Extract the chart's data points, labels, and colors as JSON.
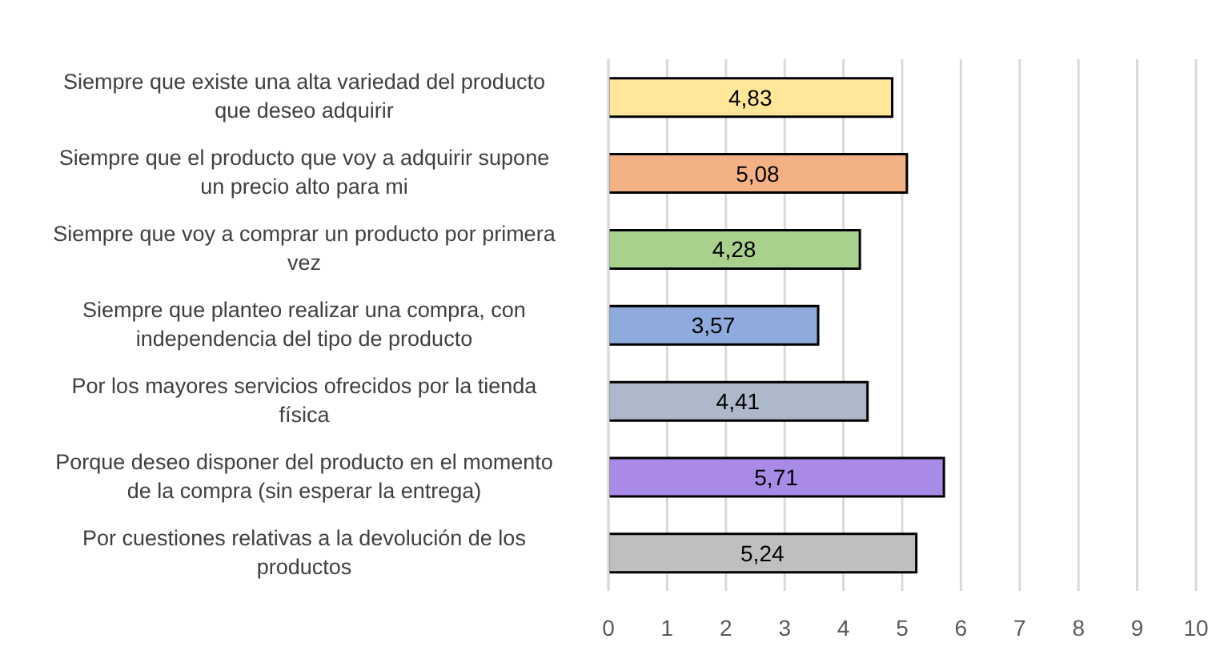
{
  "chart_data": {
    "type": "bar",
    "orientation": "horizontal",
    "categories": [
      "Siempre que existe una alta variedad del producto que deseo adquirir",
      "Siempre que el producto que voy a adquirir supone un precio alto para mi",
      "Siempre que voy a comprar un producto por primera vez",
      "Siempre que planteo realizar una compra, con independencia del tipo de producto",
      "Por los mayores servicios ofrecidos por la tienda física",
      "Porque deseo disponer del producto en el momento de la compra (sin esperar la entrega)",
      "Por cuestiones relativas a la devolución de los productos"
    ],
    "values": [
      4.83,
      5.08,
      4.28,
      3.57,
      4.41,
      5.71,
      5.24
    ],
    "value_labels": [
      "4,83",
      "5,08",
      "4,28",
      "3,57",
      "4,41",
      "5,71",
      "5,24"
    ],
    "colors": [
      "#ffe699",
      "#f4b183",
      "#a9d18e",
      "#8faadc",
      "#adb9ca",
      "#a98ae6",
      "#bfbfbf"
    ],
    "xlim": [
      0,
      10
    ],
    "xticks": [
      0,
      1,
      2,
      3,
      4,
      5,
      6,
      7,
      8,
      9,
      10
    ],
    "grid": "x"
  }
}
